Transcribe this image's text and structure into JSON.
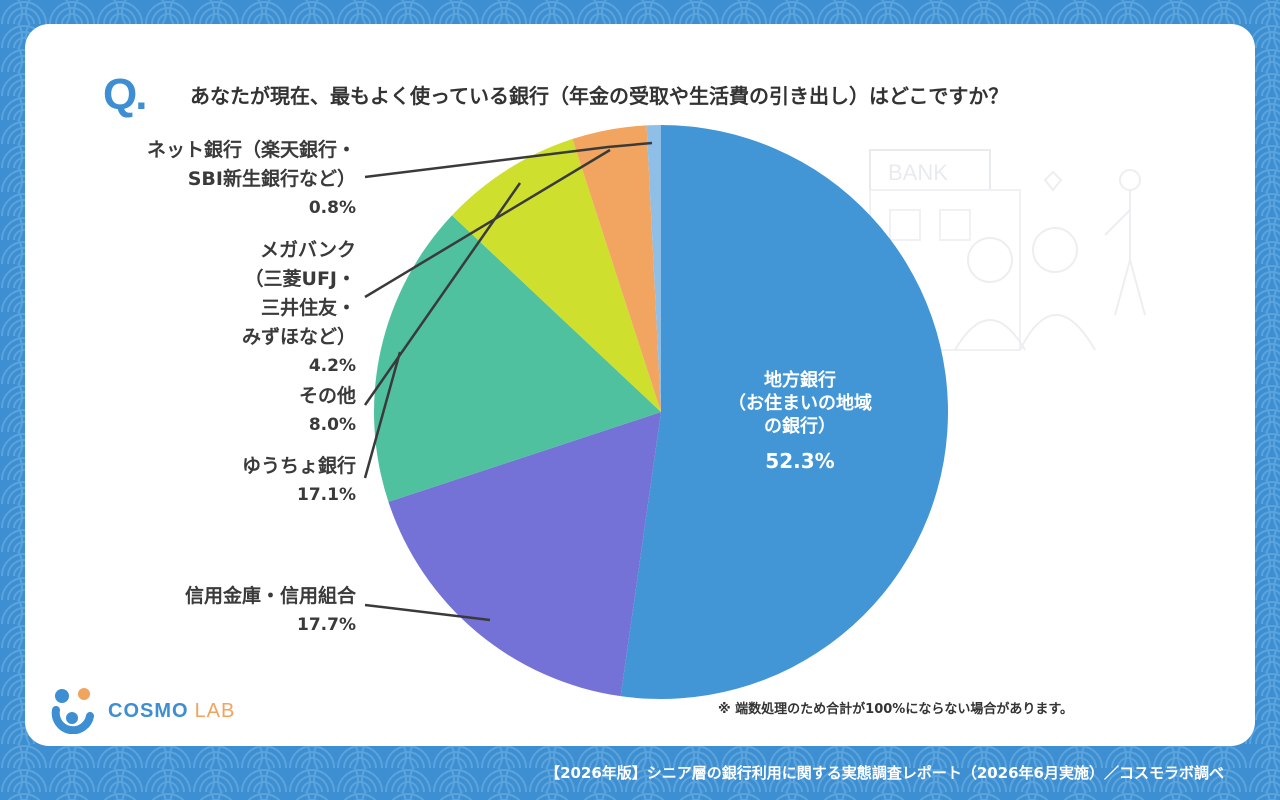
{
  "question": {
    "mark": "Q.",
    "text": "あなたが現在、最もよく使っている銀行（年金の受取や生活費の引き出し）はどこですか？"
  },
  "chart_data": {
    "type": "pie",
    "slices": [
      {
        "label": "地方銀行（お住まいの地域の銀行）",
        "value": 52.3,
        "pct_label": "52.3%",
        "color": "#4296d6"
      },
      {
        "label": "信用金庫・信用組合",
        "value": 17.7,
        "pct_label": "17.7%",
        "color": "#7472d6"
      },
      {
        "label": "ゆうちょ銀行",
        "value": 17.1,
        "pct_label": "17.1%",
        "color": "#4fc19e"
      },
      {
        "label": "その他",
        "value": 8.0,
        "pct_label": "8.0%",
        "color": "#cfdf2e"
      },
      {
        "label": "メガバンク（三菱UFJ・三井住友・みずほなど）",
        "value": 4.2,
        "pct_label": "4.2%",
        "color": "#f1a560"
      },
      {
        "label": "ネット銀行（楽天銀行・SBI新生銀行など）",
        "value": 0.8,
        "pct_label": "0.8%",
        "color": "#8fbfe6"
      }
    ],
    "start": "12 o'clock",
    "direction": "clockwise",
    "legend": "none"
  },
  "labels": {
    "net_bank": {
      "line1": "ネット銀行（楽天銀行・",
      "line2": "SBI新生銀行など）",
      "pct": "0.8%"
    },
    "mega_bank": {
      "line1": "メガバンク",
      "line2": "（三菱UFJ・",
      "line3": "三井住友・",
      "line4": "みずほなど）",
      "pct": "4.2%"
    },
    "other": {
      "line1": "その他",
      "pct": "8.0%"
    },
    "yucho": {
      "line1": "ゆうちょ銀行",
      "pct": "17.1%"
    },
    "shinkin": {
      "line1": "信用金庫・信用組合",
      "pct": "17.7%"
    },
    "regional": {
      "line1": "地方銀行",
      "line2": "（お住まいの地域",
      "line3": "の銀行）",
      "pct": "52.3%"
    }
  },
  "note": "※ 端数処理のため合計が100%にならない場合があります。",
  "logo": {
    "brand": "COSMO",
    "sub": "LAB"
  },
  "footer": "【2026年版】シニア層の銀行利用に関する実態調査レポート（2026年6月実施）／コスモラボ調べ",
  "illustration": {
    "sign": "BANK"
  },
  "colors": {
    "background": "#3d8fd1",
    "card": "#ffffff",
    "accent": "#3d8fd1"
  }
}
